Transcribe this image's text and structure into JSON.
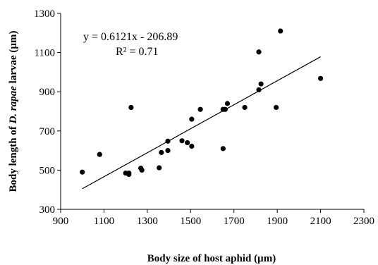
{
  "chart_data": {
    "type": "scatter",
    "xlabel": "Body size of host aphid (µm)",
    "ylabel_parts": [
      "Body length of ",
      "D. rapae",
      " larvae (µm)"
    ],
    "xlim": [
      900,
      2300
    ],
    "ylim": [
      300,
      1300
    ],
    "x_ticks": [
      900,
      1100,
      1300,
      1500,
      1700,
      1900,
      2100,
      2300
    ],
    "y_ticks": [
      300,
      500,
      700,
      900,
      1100,
      1300
    ],
    "grid": false,
    "legend": "none",
    "points": [
      {
        "x": 1000,
        "y": 490
      },
      {
        "x": 1080,
        "y": 580
      },
      {
        "x": 1200,
        "y": 485
      },
      {
        "x": 1215,
        "y": 478
      },
      {
        "x": 1215,
        "y": 485
      },
      {
        "x": 1225,
        "y": 820
      },
      {
        "x": 1270,
        "y": 510
      },
      {
        "x": 1275,
        "y": 500
      },
      {
        "x": 1355,
        "y": 512
      },
      {
        "x": 1365,
        "y": 590
      },
      {
        "x": 1395,
        "y": 600
      },
      {
        "x": 1395,
        "y": 648
      },
      {
        "x": 1460,
        "y": 650
      },
      {
        "x": 1485,
        "y": 640
      },
      {
        "x": 1505,
        "y": 622
      },
      {
        "x": 1505,
        "y": 760
      },
      {
        "x": 1545,
        "y": 810
      },
      {
        "x": 1650,
        "y": 610
      },
      {
        "x": 1650,
        "y": 810
      },
      {
        "x": 1660,
        "y": 810
      },
      {
        "x": 1670,
        "y": 840
      },
      {
        "x": 1750,
        "y": 820
      },
      {
        "x": 1815,
        "y": 910
      },
      {
        "x": 1815,
        "y": 1103
      },
      {
        "x": 1825,
        "y": 940
      },
      {
        "x": 1895,
        "y": 820
      },
      {
        "x": 1915,
        "y": 1210
      },
      {
        "x": 2100,
        "y": 968
      }
    ],
    "trendline": {
      "slope": 0.6121,
      "intercept": -206.89,
      "x_range": [
        1000,
        2100
      ],
      "equation": "y = 0.6121x - 206.89",
      "r_squared": "R² = 0.71"
    }
  }
}
